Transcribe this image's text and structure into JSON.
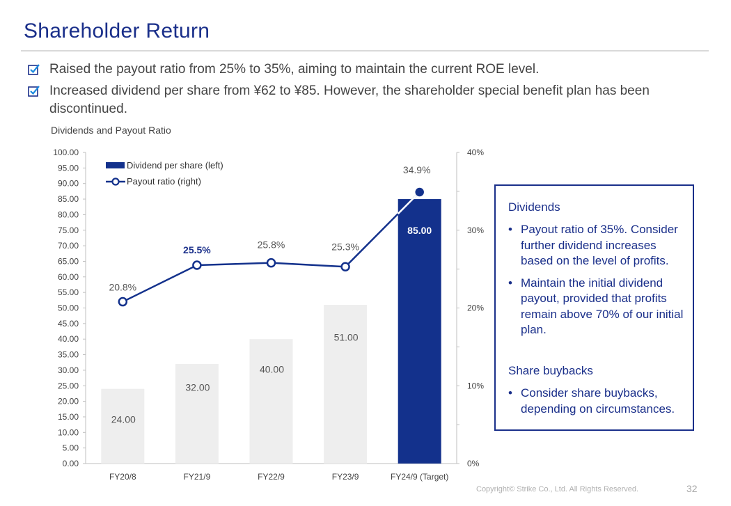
{
  "page": {
    "title": "Shareholder Return",
    "bullets": [
      "Raised the payout ratio from 25% to 35%, aiming to maintain the current ROE level.",
      "Increased dividend per share from ¥62 to ¥85. However, the shareholder special benefit plan has been discontinued."
    ],
    "footer": "Copyright© Strike Co., Ltd. All Rights Reserved.",
    "page_number": "32"
  },
  "chart_data": {
    "type": "bar",
    "title": "Dividends and Payout Ratio",
    "categories": [
      "FY20/8",
      "FY21/9",
      "FY22/9",
      "FY23/9",
      "FY24/9 (Target)"
    ],
    "series": [
      {
        "name": "Dividend per share (left)",
        "type": "bar",
        "axis": "left",
        "values": [
          24.0,
          32.0,
          40.0,
          51.0,
          85.0
        ],
        "labels": [
          "24.00",
          "32.00",
          "40.00",
          "51.00",
          "85.00"
        ],
        "highlight_index": 4,
        "color": "#eeeeee",
        "highlight_color": "#13318c"
      },
      {
        "name": "Payout ratio (right)",
        "type": "line",
        "axis": "right",
        "values": [
          20.8,
          25.5,
          25.8,
          25.3,
          34.9
        ],
        "labels": [
          "20.8%",
          "25.5%",
          "25.8%",
          "25.3%",
          "34.9%"
        ],
        "color": "#13318c"
      }
    ],
    "left_axis": {
      "range": [
        0,
        100
      ],
      "ticks": [
        "0.00",
        "5.00",
        "10.00",
        "15.00",
        "20.00",
        "25.00",
        "30.00",
        "35.00",
        "40.00",
        "45.00",
        "50.00",
        "55.00",
        "60.00",
        "65.00",
        "70.00",
        "75.00",
        "80.00",
        "85.00",
        "90.00",
        "95.00",
        "100.00"
      ]
    },
    "right_axis": {
      "range": [
        0,
        40
      ],
      "ticks": [
        "0%",
        "10%",
        "20%",
        "30%",
        "40%"
      ]
    },
    "legend": "top-left",
    "grid": false
  },
  "infobox": {
    "sections": [
      {
        "heading": "Dividends",
        "items": [
          "Payout ratio of 35%. Consider further dividend increases based on the level of profits.",
          "Maintain the initial dividend payout, provided that profits remain above 70% of our initial plan."
        ]
      },
      {
        "heading": "Share buybacks",
        "items": [
          "Consider share buybacks, depending on circumstances."
        ]
      }
    ]
  },
  "colors": {
    "accent": "#1a2f8a",
    "bar_gray": "#eeeeee",
    "bar_highlight": "#13318c"
  }
}
